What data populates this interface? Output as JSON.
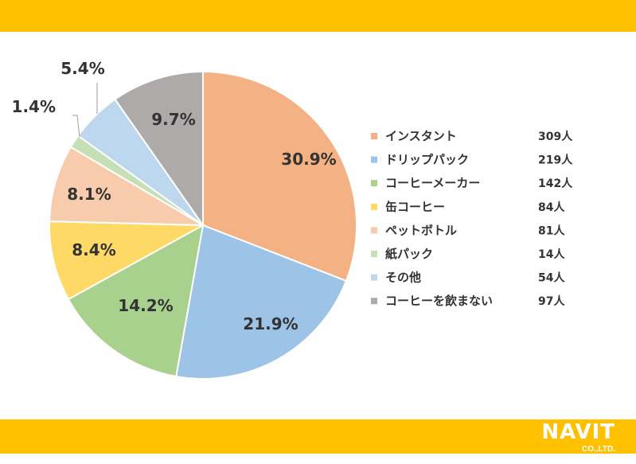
{
  "colors": {
    "brand_bar": "#FFC000",
    "label_text": "#333333",
    "slice_border": "#ffffff"
  },
  "chart_data": {
    "type": "pie",
    "title": "",
    "start_angle_deg": 0,
    "direction": "clockwise",
    "legend_position": "right",
    "slices": [
      {
        "name": "インスタント",
        "value": 309,
        "value_label": "309人",
        "percent": 30.9,
        "percent_label": "30.9%",
        "color": "#F4B183"
      },
      {
        "name": "ドリップパック",
        "value": 219,
        "value_label": "219人",
        "percent": 21.9,
        "percent_label": "21.9%",
        "color": "#9DC3E6"
      },
      {
        "name": "コーヒーメーカー",
        "value": 142,
        "value_label": "142人",
        "percent": 14.2,
        "percent_label": "14.2%",
        "color": "#A9D18E"
      },
      {
        "name": "缶コーヒー",
        "value": 84,
        "value_label": "84人",
        "percent": 8.4,
        "percent_label": "8.4%",
        "color": "#FFD966"
      },
      {
        "name": "ペットボトル",
        "value": 81,
        "value_label": "81人",
        "percent": 8.1,
        "percent_label": "8.1%",
        "color": "#F8CBAD"
      },
      {
        "name": "紙パック",
        "value": 14,
        "value_label": "14人",
        "percent": 1.4,
        "percent_label": "1.4%",
        "color": "#C5E0B4"
      },
      {
        "name": "その他",
        "value": 54,
        "value_label": "54人",
        "percent": 5.4,
        "percent_label": "5.4%",
        "color": "#BDD7EE"
      },
      {
        "name": "コーヒーを飲まない",
        "value": 97,
        "value_label": "97人",
        "percent": 9.7,
        "percent_label": "9.7%",
        "color": "#AEAAAA"
      }
    ]
  },
  "logo": {
    "main": "NAVIT",
    "sub": "CO.,LTD.",
    "url": "www.navit-j.com"
  }
}
